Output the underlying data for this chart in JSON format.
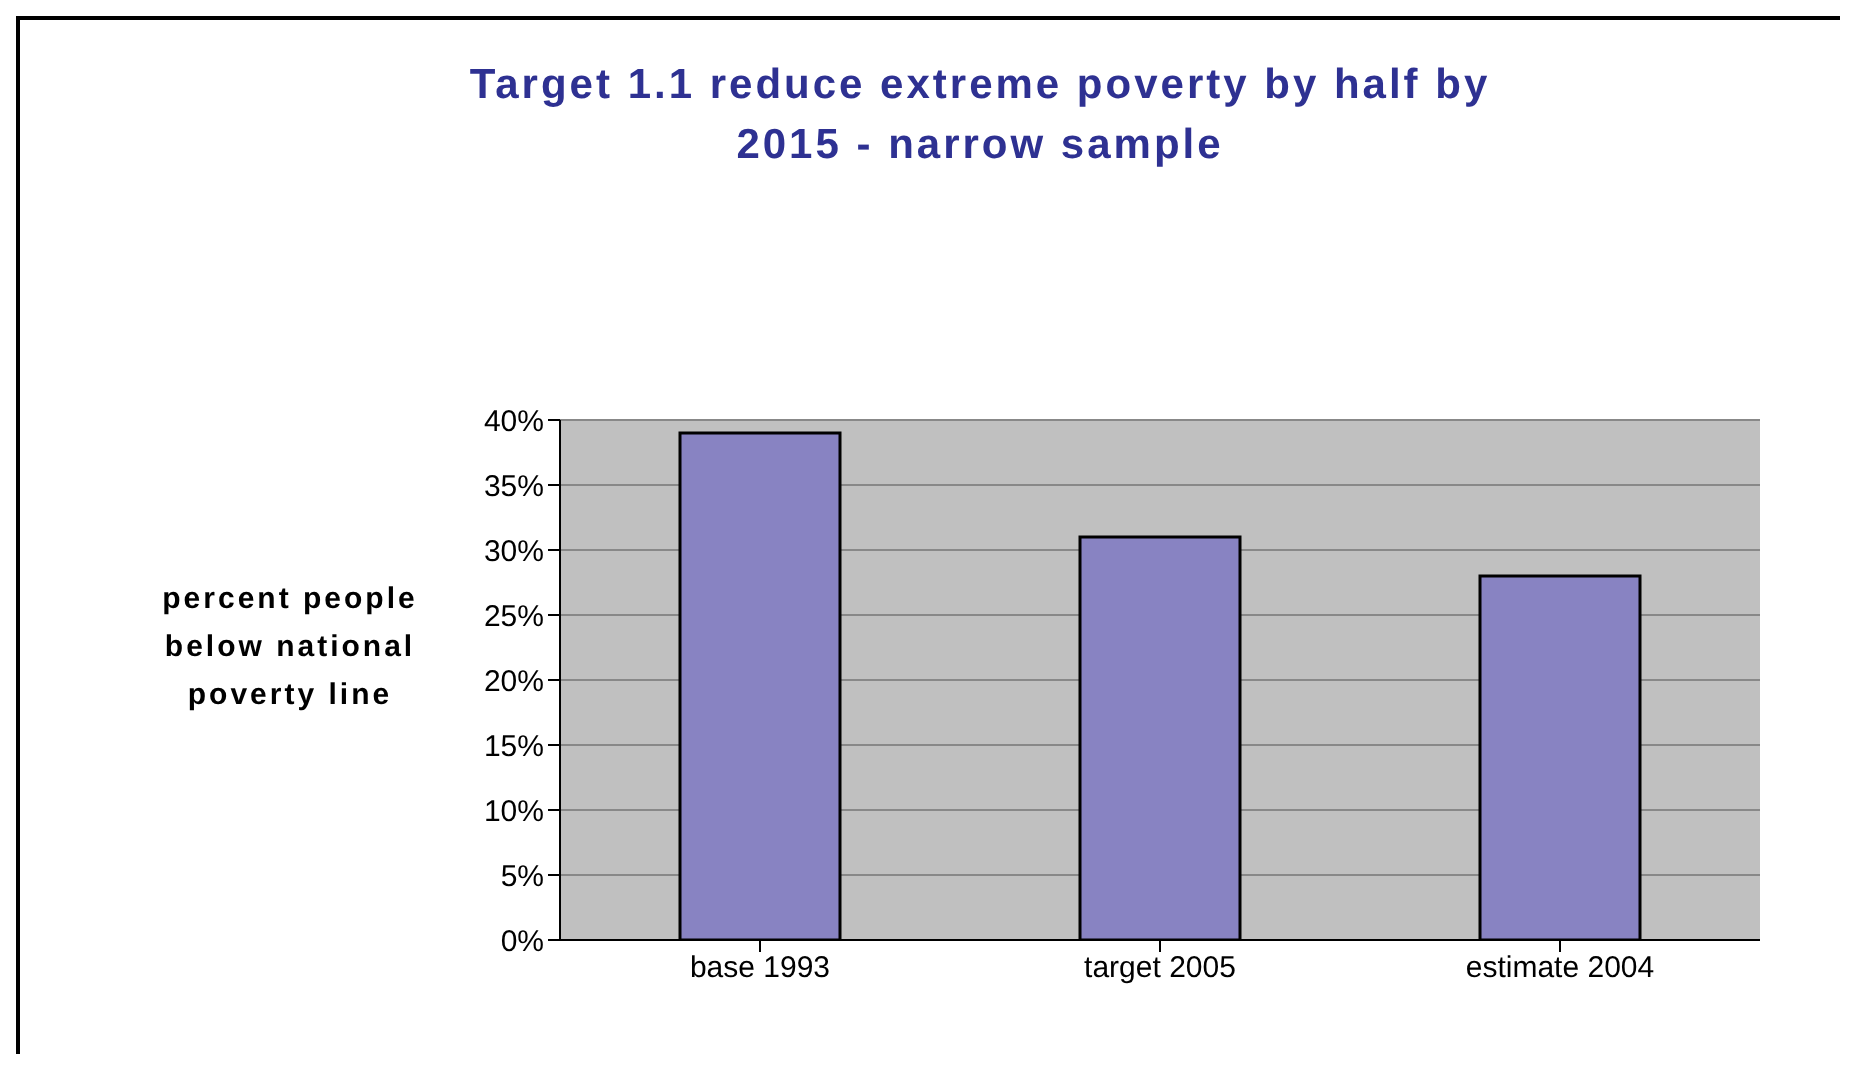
{
  "chart_data": {
    "type": "bar",
    "title": "Target 1.1 reduce extreme poverty by half by 2015 - narrow sample",
    "ylabel": "percent people below national poverty line",
    "categories": [
      "base 1993",
      "target 2005",
      "estimate 2004"
    ],
    "values": [
      39,
      31,
      28
    ],
    "color": "#8883c2",
    "ylim": [
      0,
      40
    ],
    "yticks": [
      {
        "value": 0,
        "label": "0%"
      },
      {
        "value": 5,
        "label": "5%"
      },
      {
        "value": 10,
        "label": "10%"
      },
      {
        "value": 15,
        "label": "15%"
      },
      {
        "value": 20,
        "label": "20%"
      },
      {
        "value": 25,
        "label": "25%"
      },
      {
        "value": 30,
        "label": "30%"
      },
      {
        "value": 35,
        "label": "35%"
      },
      {
        "value": 40,
        "label": "40%"
      }
    ],
    "grid": "y"
  }
}
